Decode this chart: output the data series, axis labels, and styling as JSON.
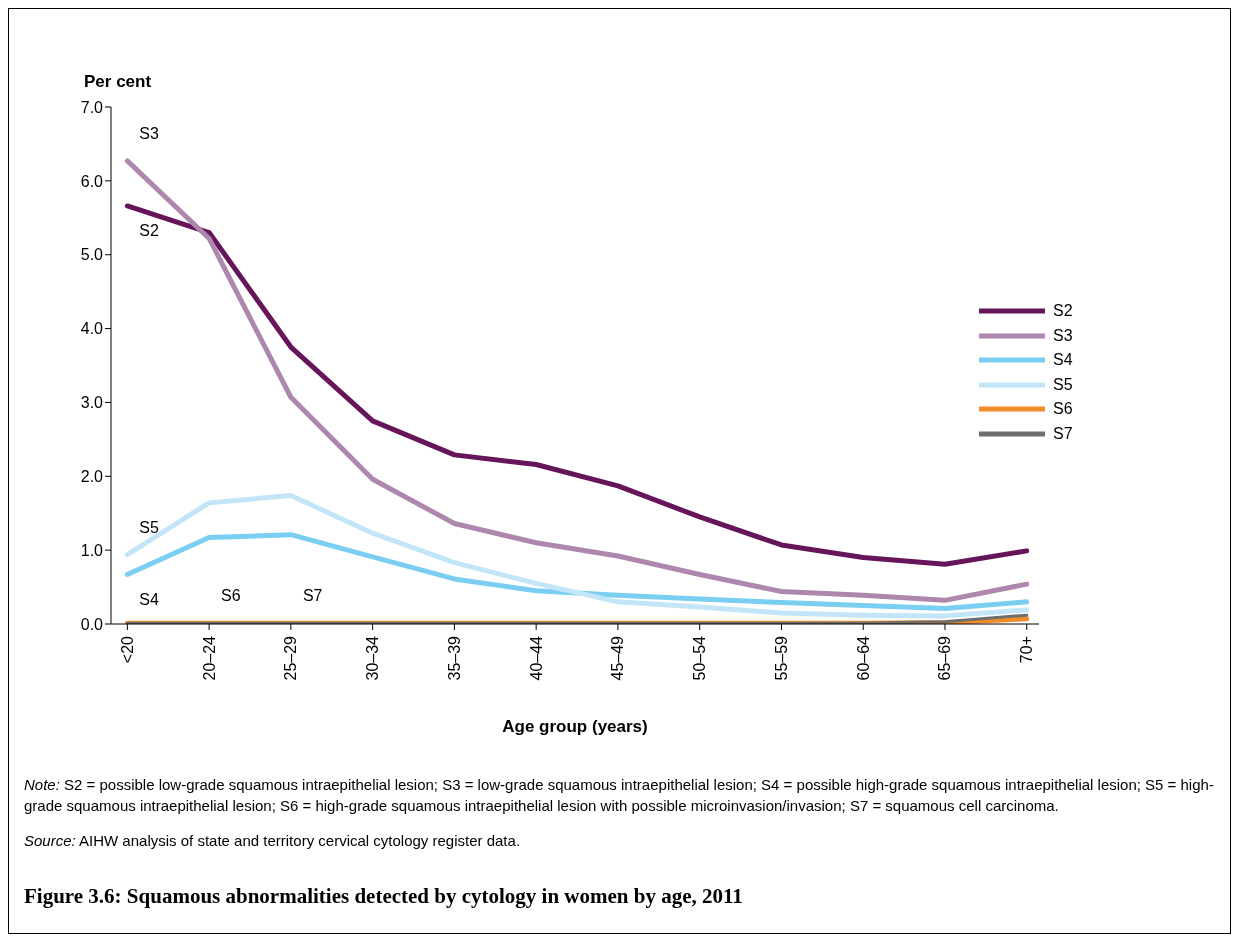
{
  "chart_data": {
    "type": "line",
    "title": "Figure 3.6: Squamous abnormalities detected by cytology in women by age, 2011",
    "xlabel": "Age group (years)",
    "ylabel": "Per cent",
    "categories": [
      "<20",
      "20–24",
      "25–29",
      "30–34",
      "35–39",
      "40–44",
      "45–49",
      "50–54",
      "55–59",
      "60–64",
      "65–69",
      "70+"
    ],
    "series": [
      {
        "name": "S2",
        "color": "#66155a",
        "values": [
          5.66,
          5.3,
          3.75,
          2.75,
          2.29,
          2.16,
          1.87,
          1.45,
          1.07,
          0.9,
          0.81,
          0.99
        ]
      },
      {
        "name": "S3",
        "color": "#ad87ad",
        "values": [
          6.27,
          5.22,
          3.07,
          1.96,
          1.36,
          1.1,
          0.92,
          0.67,
          0.44,
          0.39,
          0.32,
          0.54
        ]
      },
      {
        "name": "S4",
        "color": "#7acef2",
        "values": [
          0.67,
          1.17,
          1.21,
          0.91,
          0.61,
          0.45,
          0.39,
          0.34,
          0.29,
          0.25,
          0.21,
          0.3
        ]
      },
      {
        "name": "S5",
        "color": "#c2e6f7",
        "values": [
          0.94,
          1.64,
          1.74,
          1.23,
          0.83,
          0.55,
          0.3,
          0.23,
          0.15,
          0.12,
          0.11,
          0.19
        ]
      },
      {
        "name": "S6",
        "color": "#f28c28",
        "values": [
          0.01,
          0.01,
          0.01,
          0.01,
          0.01,
          0.01,
          0.01,
          0.01,
          0.01,
          0.01,
          0.02,
          0.07
        ]
      },
      {
        "name": "S7",
        "color": "#6e6e6e",
        "values": [
          0.01,
          0.01,
          0.01,
          0.01,
          0.01,
          0.01,
          0.01,
          0.01,
          0.01,
          0.01,
          0.03,
          0.12
        ]
      }
    ],
    "ylim": [
      0,
      7
    ],
    "yticks": [
      {
        "value": 0,
        "label": "0.0"
      },
      {
        "value": 1,
        "label": "1.0"
      },
      {
        "value": 2,
        "label": "2.0"
      },
      {
        "value": 3,
        "label": "3.0"
      },
      {
        "value": 4,
        "label": "4.0"
      },
      {
        "value": 5,
        "label": "5.0"
      },
      {
        "value": 6,
        "label": "6.0"
      },
      {
        "value": 7,
        "label": "7.0"
      }
    ],
    "grid": false,
    "legend": "right",
    "marker": "none",
    "line_style": "solid",
    "annotations": [
      "Note: S2 = possible low-grade squamous intraepithelial lesion; S3 = low-grade squamous intraepithelial lesion; S4 = possible high-grade squamous intraepithelial lesion; S5 = high-grade squamous intraepithelial lesion; S6 = high-grade squamous intraepithelial lesion with possible microinvasion/invasion; S7 = squamous cell carcinoma.",
      "Source: AIHW analysis of state and territory cervical cytology register data."
    ]
  }
}
